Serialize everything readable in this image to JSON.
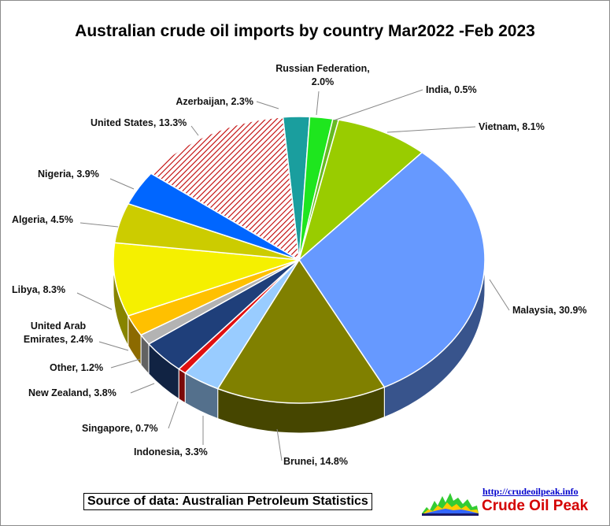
{
  "chart_data": {
    "type": "pie",
    "title": "Australian crude oil imports by country Mar2022 -Feb 2023",
    "slices": [
      {
        "label": "Azerbaijan",
        "value": 2.3,
        "display": "Azerbaijan, 2.3%",
        "color": "#1a9e9e"
      },
      {
        "label": "Russian Federation",
        "value": 2.0,
        "display": "Russian Federation, 2.0%",
        "color": "#1ee61e"
      },
      {
        "label": "India",
        "value": 0.5,
        "display": "India, 0.5%",
        "color": "#66bb22"
      },
      {
        "label": "Vietnam",
        "value": 8.1,
        "display": "Vietnam, 8.1%",
        "color": "#99cc00"
      },
      {
        "label": "Malaysia",
        "value": 30.9,
        "display": "Malaysia, 30.9%",
        "color": "#6699ff"
      },
      {
        "label": "Brunei",
        "value": 14.8,
        "display": "Brunei, 14.8%",
        "color": "#808000"
      },
      {
        "label": "Indonesia",
        "value": 3.3,
        "display": "Indonesia, 3.3%",
        "color": "#99ccff"
      },
      {
        "label": "Singapore",
        "value": 0.7,
        "display": "Singapore, 0.7%",
        "color": "#e01010"
      },
      {
        "label": "New Zealand",
        "value": 3.8,
        "display": "New Zealand, 3.8%",
        "color": "#1f3f7a"
      },
      {
        "label": "Other",
        "value": 1.2,
        "display": "Other, 1.2%",
        "color": "#b3b3b3"
      },
      {
        "label": "United Arab Emirates",
        "value": 2.4,
        "display": "United Arab Emirates, 2.4%",
        "color": "#ffc000"
      },
      {
        "label": "Libya",
        "value": 8.3,
        "display": "Libya, 8.3%",
        "color": "#f5f000"
      },
      {
        "label": "Algeria",
        "value": 4.5,
        "display": "Algeria, 4.5%",
        "color": "#cccc00"
      },
      {
        "label": "Nigeria",
        "value": 3.9,
        "display": "Nigeria, 3.9%",
        "color": "#0066ff"
      },
      {
        "label": "United States",
        "value": 13.3,
        "display": "United States, 13.3%",
        "color": "#c00000",
        "pattern": "diagonal-hatch"
      }
    ]
  },
  "footer": {
    "source": "Source of data: Australian Petroleum Statistics",
    "url": "http://crudeoilpeak.info",
    "brand": "Crude Oil Peak"
  }
}
